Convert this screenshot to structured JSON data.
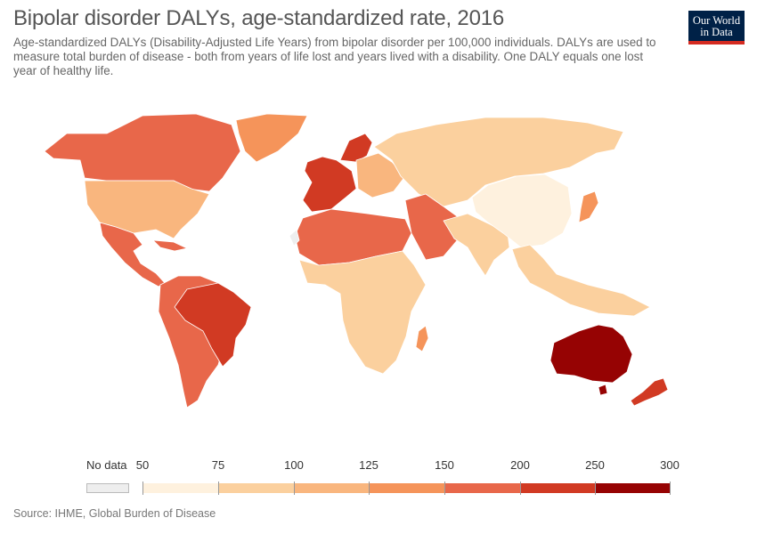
{
  "title": "Bipolar disorder DALYs, age-standardized rate, 2016",
  "subtitle": "Age-standardized DALYs (Disability-Adjusted Life Years) from bipolar disorder per 100,000 individuals. DALYs are used to measure total burden of disease - both from years of life lost and years lived with a disability. One DALY equals one lost year of healthy life.",
  "logo": {
    "line1": "Our World",
    "line2": "in Data"
  },
  "legend": {
    "no_data_label": "No data",
    "no_data_color": "#eeeeee",
    "bins": [
      {
        "from": "50",
        "to": "75",
        "color": "#fef1de"
      },
      {
        "from": "75",
        "to": "100",
        "color": "#fbd09e"
      },
      {
        "from": "100",
        "to": "125",
        "color": "#f9b67e"
      },
      {
        "from": "125",
        "to": "150",
        "color": "#f5945a"
      },
      {
        "from": "150",
        "to": "200",
        "color": "#e8674a"
      },
      {
        "from": "200",
        "to": "250",
        "color": "#d13a23"
      },
      {
        "from": "250",
        "to": "300",
        "color": "#960303"
      }
    ],
    "tick_labels": [
      "50",
      "75",
      "100",
      "125",
      "150",
      "200",
      "250",
      "300"
    ]
  },
  "source": "Source: IHME, Global Burden of Disease",
  "regions": {
    "canada": "#e8674a",
    "greenland": "#f5945a",
    "usa": "#f9b67e",
    "mexico_central_america": "#e8674a",
    "south_america": "#e8674a",
    "brazil_paraguay": "#d13a23",
    "western_europe": "#d13a23",
    "eastern_europe": "#f9b67e",
    "russia": "#fbd09e",
    "north_africa": "#e8674a",
    "middle_east": "#e8674a",
    "sub_saharan_africa": "#fbd09e",
    "south_asia": "#fbd09e",
    "china": "#fef1de",
    "japan": "#f5945a",
    "southeast_asia": "#fbd09e",
    "madagascar": "#f5945a",
    "australia": "#960303",
    "new_zealand": "#d13a23",
    "no_data": "#eeeeee"
  }
}
